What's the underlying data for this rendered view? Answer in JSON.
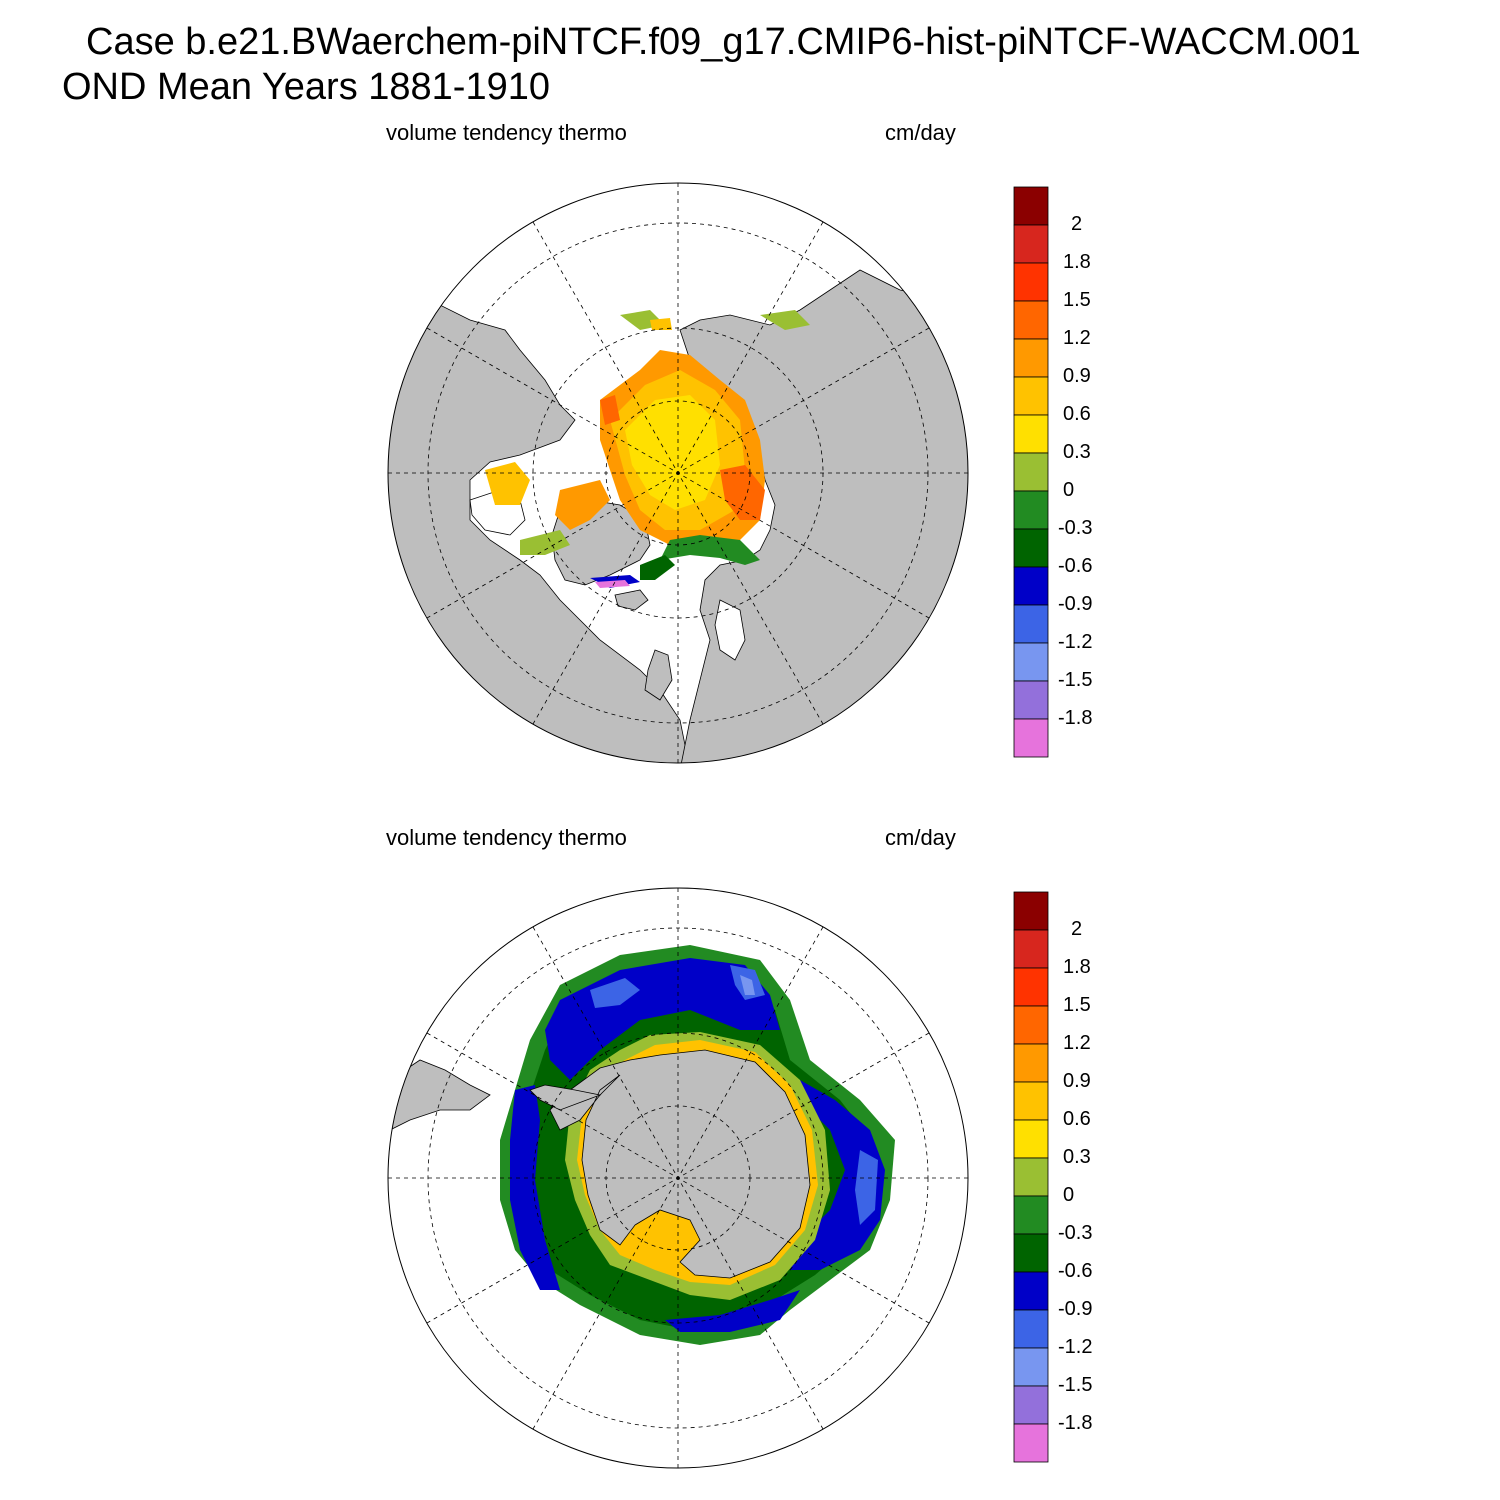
{
  "header": {
    "line1": "Case b.e21.BWaerchem-piNTCF.f09_g17.CMIP6-hist-piNTCF-WACCM.001",
    "line2": "OND Mean   Years 1881-1910"
  },
  "panels": [
    {
      "id": "arctic",
      "left_label": "volume tendency thermo",
      "right_label": "cm/day",
      "region": "Northern Hemisphere (polar stereographic)"
    },
    {
      "id": "antarctic",
      "left_label": "volume tendency thermo",
      "right_label": "cm/day",
      "region": "Southern Hemisphere (polar stereographic)"
    }
  ],
  "colorbar": {
    "labels": [
      "2",
      "1.8",
      "1.5",
      "1.2",
      "0.9",
      "0.6",
      "0.3",
      "0",
      "-0.3",
      "-0.6",
      "-0.9",
      "-1.2",
      "-1.5",
      "-1.8"
    ],
    "colors": [
      "#8b0000",
      "#d7261e",
      "#ff3300",
      "#ff6600",
      "#ff9900",
      "#ffc200",
      "#ffe000",
      "#9abf33",
      "#228b22",
      "#006400",
      "#0000c8",
      "#3c64e6",
      "#7896f0",
      "#9370db",
      "#e673dc"
    ]
  },
  "map_colors": {
    "land": "#bebebe",
    "ocean": "#ffffff"
  }
}
